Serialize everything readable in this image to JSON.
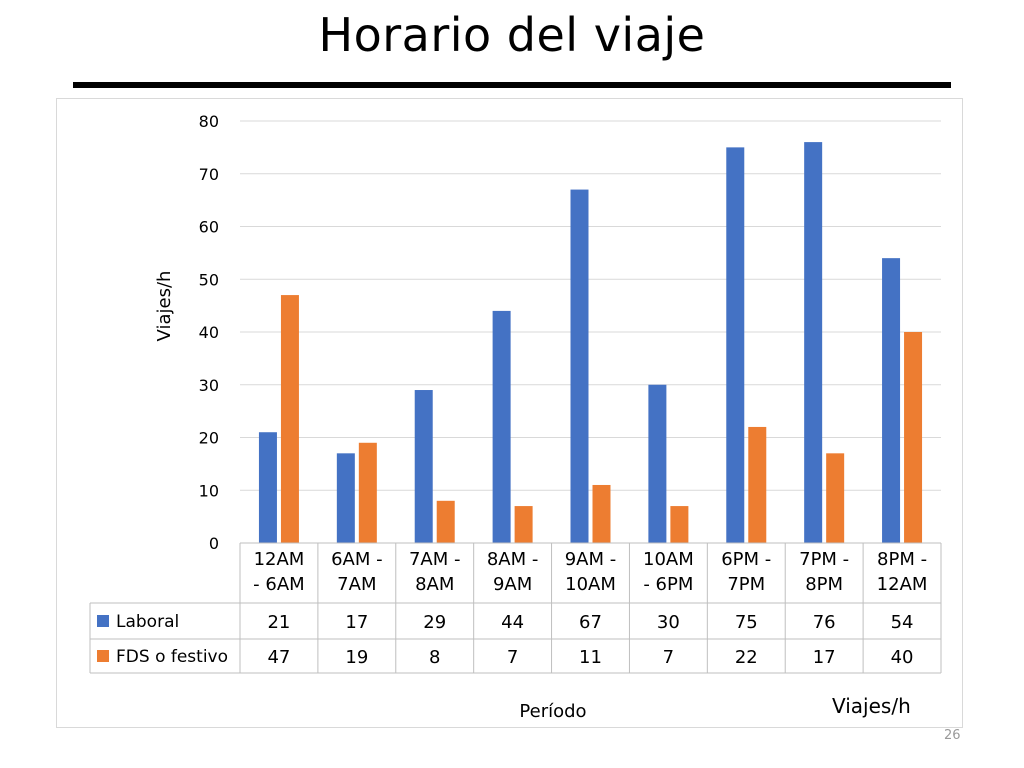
{
  "slide": {
    "title": "Horario del viaje",
    "corner_label": "Viajes/h",
    "page_number": "26"
  },
  "chart_data": {
    "type": "bar",
    "title": "",
    "xlabel": "Período",
    "ylabel": "Viajes/h",
    "ylim": [
      0,
      80
    ],
    "yticks": [
      0,
      10,
      20,
      30,
      40,
      50,
      60,
      70,
      80
    ],
    "grid": true,
    "legend": "table",
    "categories": [
      [
        "12AM",
        "- 6AM"
      ],
      [
        "6AM -",
        "7AM"
      ],
      [
        "7AM -",
        "8AM"
      ],
      [
        "8AM -",
        "9AM"
      ],
      [
        "9AM -",
        "10AM"
      ],
      [
        "10AM",
        "- 6PM"
      ],
      [
        "6PM -",
        "7PM"
      ],
      [
        "7PM -",
        "8PM"
      ],
      [
        "8PM -",
        "12AM"
      ]
    ],
    "series": [
      {
        "name": "Laboral",
        "color": "#4472c4",
        "values": [
          21,
          17,
          29,
          44,
          67,
          30,
          75,
          76,
          54
        ]
      },
      {
        "name": "FDS o festivo",
        "color": "#ed7d31",
        "values": [
          47,
          19,
          8,
          7,
          11,
          7,
          22,
          17,
          40
        ]
      }
    ],
    "data_table": true
  }
}
